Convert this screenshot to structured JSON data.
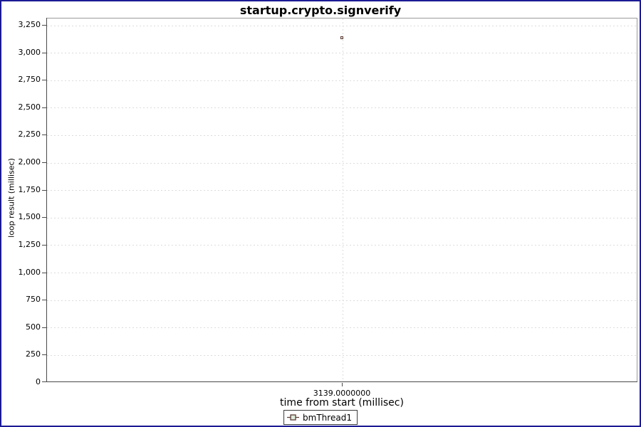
{
  "window": {
    "background": "#ffffff",
    "border_color": "#1a1a94"
  },
  "chart_data": {
    "type": "scatter",
    "title": "startup.crypto.signverify",
    "xlabel": "time from start (millisec)",
    "ylabel": "loop result (millisec)",
    "xlim": [
      3138.5,
      3139.5
    ],
    "ylim": [
      0,
      3315
    ],
    "x_ticks": [
      {
        "value": 3139,
        "label": "3139.0000000"
      }
    ],
    "y_tick_values": [
      0,
      250,
      500,
      750,
      1000,
      1250,
      1500,
      1750,
      2000,
      2250,
      2500,
      2750,
      3000,
      3250
    ],
    "y_tick_labels": [
      "0",
      "250",
      "500",
      "750",
      "1,000",
      "1,250",
      "1,500",
      "1,750",
      "2,000",
      "2,250",
      "2,500",
      "2,750",
      "3,000",
      "3,250"
    ],
    "grid": {
      "horizontal": true,
      "vertical": true,
      "style": "dashed",
      "color": "#dcdcdc"
    },
    "legend_position": "bottom",
    "series": [
      {
        "name": "bmThread1",
        "marker": "square",
        "stroke_color": "#5c3a35",
        "fill_color": "#dcebdb",
        "points": [
          {
            "x": 3139,
            "y": 3133
          }
        ]
      }
    ]
  },
  "legend": {
    "items": [
      {
        "label": "bmThread1"
      }
    ]
  }
}
